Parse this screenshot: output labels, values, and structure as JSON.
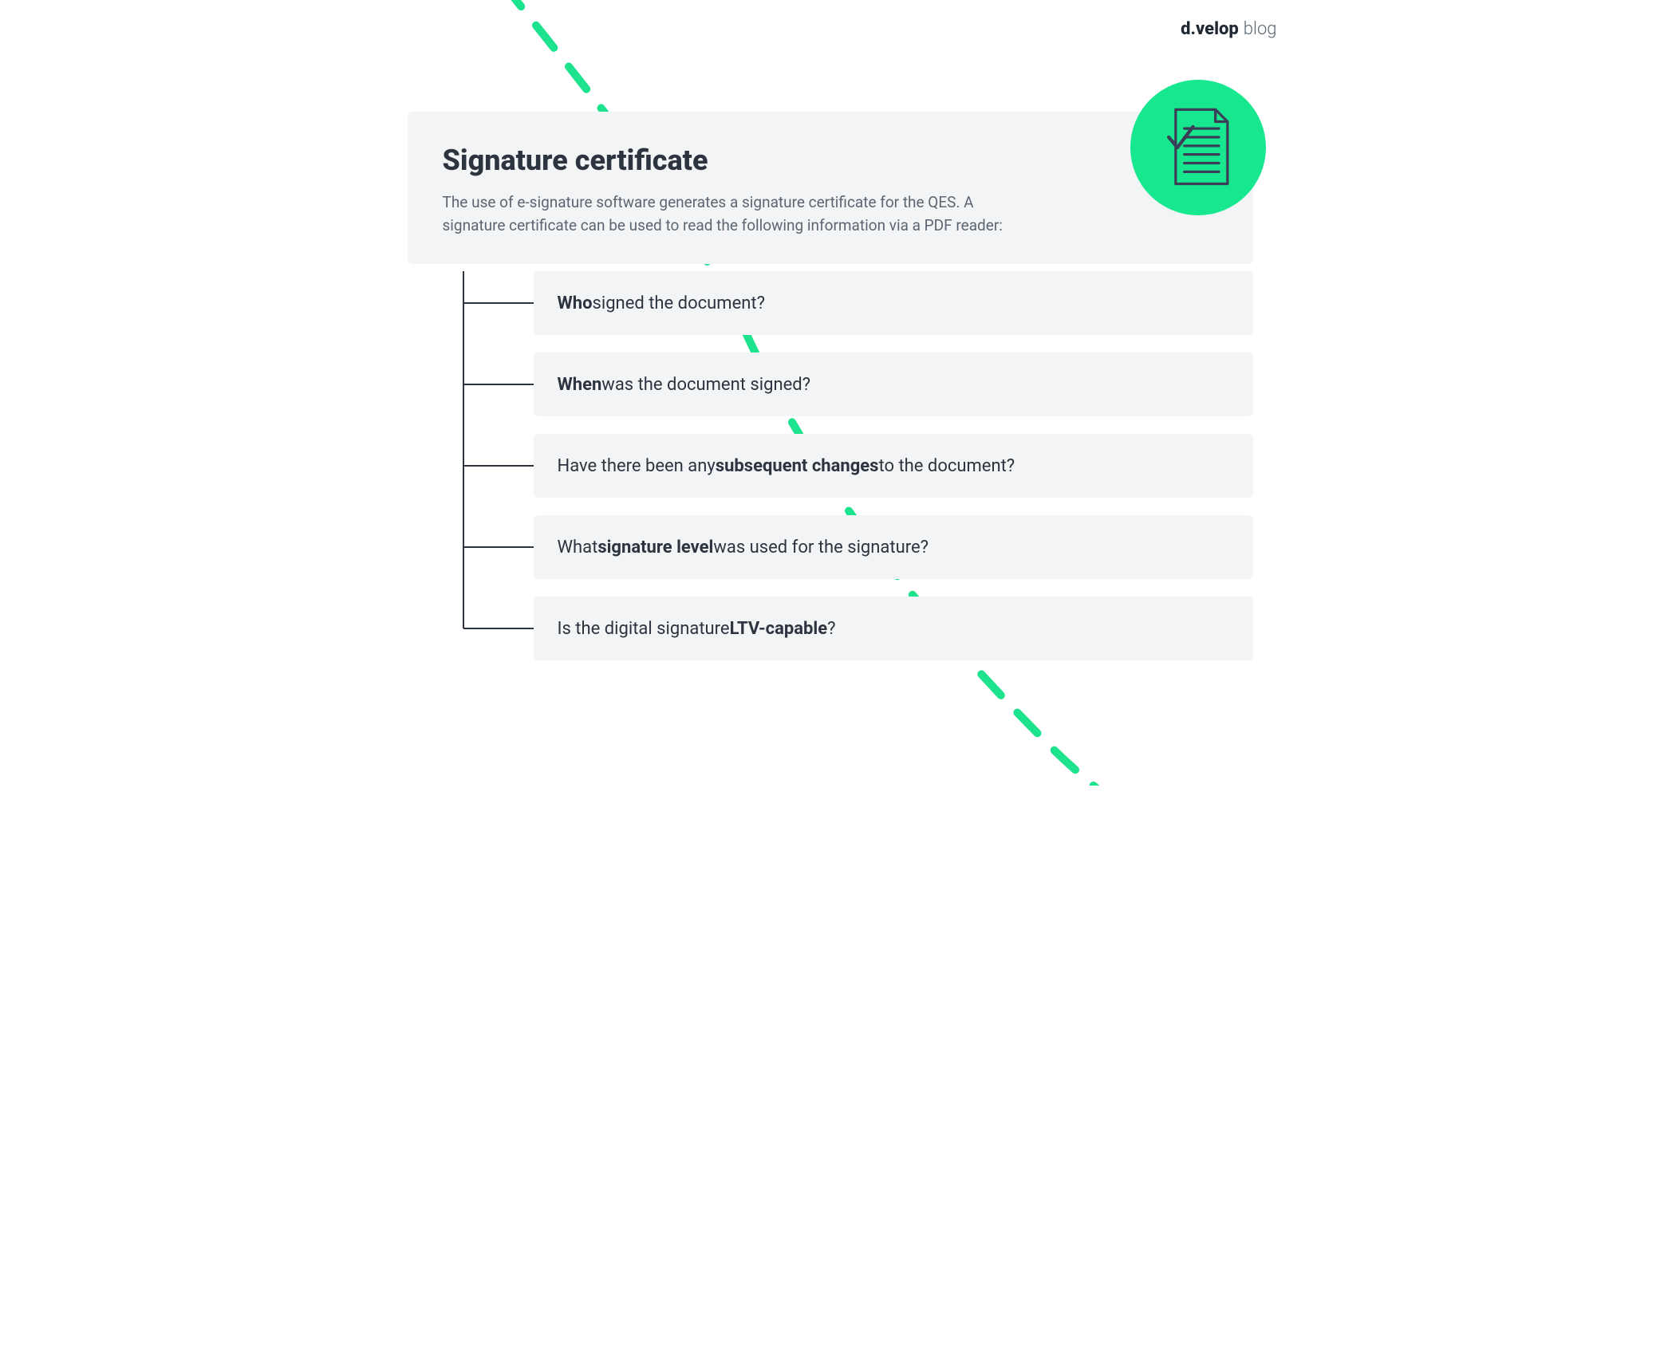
{
  "colors": {
    "background": "#ffffff",
    "card_bg": "#f3f4f5",
    "text_primary": "#2c3440",
    "text_secondary": "#5c6673",
    "tree_line": "#2c3440",
    "accent_green": "#17e88f",
    "dashed_green": "#1de28e",
    "icon_stroke": "#3a3f57"
  },
  "logo": {
    "brand": "d.velop",
    "blog": "blog",
    "brand_color": "#1f2733",
    "blog_color": "#5c6673"
  },
  "header": {
    "title": "Signature certificate",
    "description": "The use of e-signature software generates a signature certificate for the QES. A signature certificate can be used to read the following information via a PDF reader:",
    "title_fontsize": 36,
    "desc_fontsize": 19
  },
  "dashed_curve": {
    "stroke_width": 10,
    "dash": "36 30"
  },
  "tree": {
    "line_width": 2,
    "items": [
      {
        "html": "<b>Who</b> signed the document?"
      },
      {
        "html": "<b>When</b> was the document signed?"
      },
      {
        "html": "Have there been any <b>subsequent changes</b> to the document?"
      },
      {
        "html": "What <b>signature level</b> was used for the signature?"
      },
      {
        "html": "Is the digital signature <b>LTV-capable</b>?"
      }
    ],
    "item_height": 80,
    "item_gap": 22,
    "item_fontsize": 22
  },
  "circle_icon": {
    "diameter": 170
  }
}
